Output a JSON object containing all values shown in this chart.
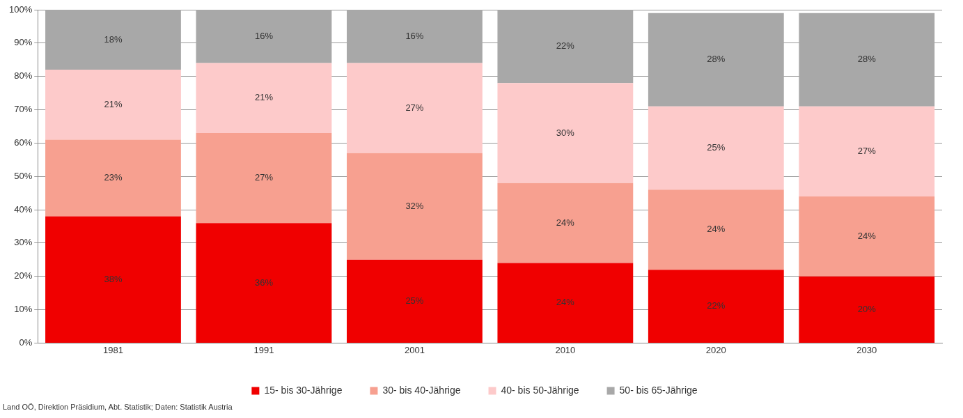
{
  "chart_data": {
    "type": "bar",
    "stacked": true,
    "categories": [
      "1981",
      "1991",
      "2001",
      "2010",
      "2020",
      "2030"
    ],
    "series": [
      {
        "name": "15- bis 30-Jährige",
        "color": "#f00000",
        "values": [
          38,
          36,
          25,
          24,
          22,
          20
        ]
      },
      {
        "name": "30- bis 40-Jährige",
        "color": "#f7a090",
        "values": [
          23,
          27,
          32,
          24,
          24,
          24
        ]
      },
      {
        "name": "40- bis 50-Jährige",
        "color": "#fdcaca",
        "values": [
          21,
          21,
          27,
          30,
          25,
          27
        ]
      },
      {
        "name": "50- bis 65-Jährige",
        "color": "#a8a8a8",
        "values": [
          18,
          16,
          16,
          22,
          28,
          28
        ]
      }
    ],
    "ylim": [
      0,
      100
    ],
    "yticks": [
      {
        "value": 0,
        "label": "0%"
      },
      {
        "value": 10,
        "label": "10%"
      },
      {
        "value": 20,
        "label": "20%"
      },
      {
        "value": 30,
        "label": "30%"
      },
      {
        "value": 40,
        "label": "40%"
      },
      {
        "value": 50,
        "label": "50%"
      },
      {
        "value": 60,
        "label": "60%"
      },
      {
        "value": 70,
        "label": "70%"
      },
      {
        "value": 80,
        "label": "80%"
      },
      {
        "value": 90,
        "label": "90%"
      },
      {
        "value": 100,
        "label": "100%"
      }
    ],
    "value_labels": [
      [
        "38%",
        "36%",
        "25%",
        "24%",
        "22%",
        "20%"
      ],
      [
        "23%",
        "27%",
        "32%",
        "24%",
        "24%",
        "24%"
      ],
      [
        "21%",
        "21%",
        "27%",
        "30%",
        "25%",
        "27%"
      ],
      [
        "18%",
        "16%",
        "16%",
        "22%",
        "28%",
        "28%"
      ]
    ],
    "grid": "y",
    "legend": "bottom",
    "annotations": [
      "Land OÖ, Direktion Präsidium, Abt. Statistik; Daten: Statistik Austria"
    ]
  }
}
